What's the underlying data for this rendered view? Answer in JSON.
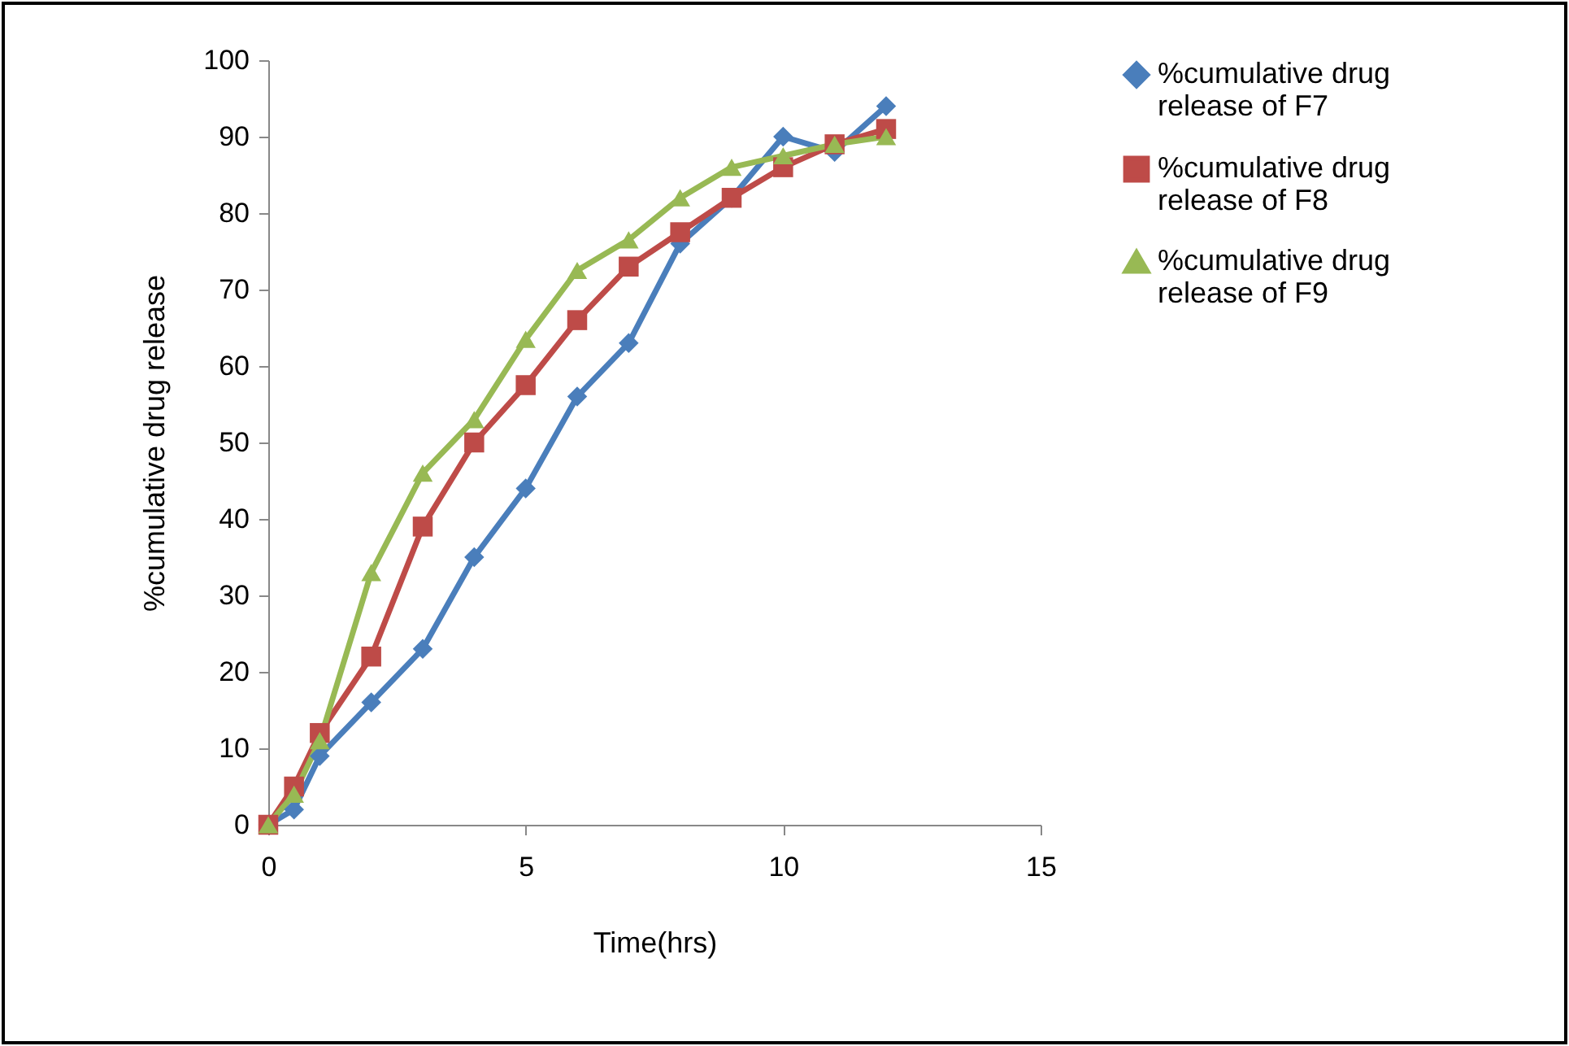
{
  "chart_data": {
    "type": "line",
    "xlabel": "Time(hrs)",
    "ylabel": "%cumulative drug release",
    "x": [
      0,
      0.5,
      1,
      2,
      3,
      4,
      5,
      6,
      7,
      8,
      9,
      10,
      11,
      12
    ],
    "series": [
      {
        "name": "%cumulative drug release of F7",
        "color": "#4a7ebb",
        "marker": "diamond",
        "values": [
          0,
          2,
          9,
          16,
          23,
          35,
          44,
          56,
          63,
          76,
          82,
          90,
          88,
          94
        ]
      },
      {
        "name": "%cumulative drug release of F8",
        "color": "#be4b48",
        "marker": "square",
        "values": [
          0,
          5,
          12,
          22,
          39,
          50,
          57.5,
          66,
          73,
          77.5,
          82,
          86,
          89,
          91
        ]
      },
      {
        "name": "%cumulative drug release of F9",
        "color": "#98b954",
        "marker": "triangle",
        "values": [
          0,
          4,
          11,
          33,
          46,
          53,
          63.5,
          72.5,
          76.5,
          82,
          86,
          87.5,
          89,
          90
        ]
      }
    ],
    "xlim": [
      0,
      15
    ],
    "xticks": [
      0,
      5,
      10,
      15
    ],
    "ylim": [
      0,
      100
    ],
    "yticks": [
      0,
      10,
      20,
      30,
      40,
      50,
      60,
      70,
      80,
      90,
      100
    ],
    "grid": false,
    "legend": "right",
    "line_style": "solid"
  }
}
